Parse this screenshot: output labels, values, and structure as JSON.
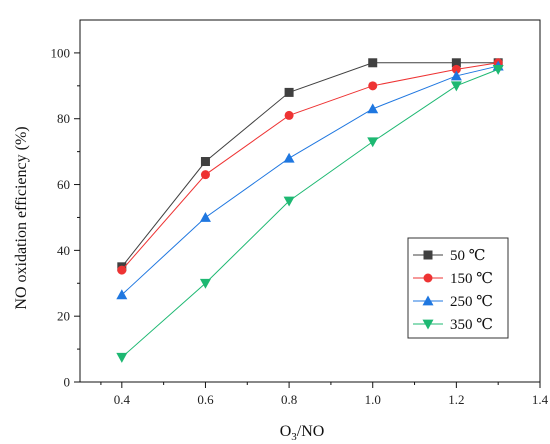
{
  "chart_data": {
    "type": "line",
    "xlabel": "O3/NO",
    "xlabel_main": "O",
    "xlabel_sub": "3",
    "xlabel_tail": "/NO",
    "ylabel": "NO oxidation efficiency (%)",
    "xlim": [
      0.3,
      1.4
    ],
    "ylim": [
      0,
      110
    ],
    "xticks": [
      0.4,
      0.6,
      0.8,
      1.0,
      1.2,
      1.4
    ],
    "xtick_labels": [
      "0.4",
      "0.6",
      "0.8",
      "1.0",
      "1.2",
      "1.4"
    ],
    "yticks": [
      0,
      20,
      40,
      60,
      80,
      100
    ],
    "ytick_labels": [
      "0",
      "20",
      "40",
      "60",
      "80",
      "100"
    ],
    "grid": false,
    "legend_position": "center-right",
    "x": [
      0.4,
      0.6,
      0.8,
      1.0,
      1.2,
      1.3
    ],
    "series": [
      {
        "name": "50 ℃",
        "color": "#404040",
        "marker": "square",
        "values": [
          35,
          67,
          88,
          97,
          97,
          97
        ]
      },
      {
        "name": "150 ℃",
        "color": "#ee3333",
        "marker": "circle",
        "values": [
          34,
          63,
          81,
          90,
          95,
          97
        ]
      },
      {
        "name": "250 ℃",
        "color": "#1f77e0",
        "marker": "triangle-up",
        "values": [
          26.5,
          50,
          68,
          83,
          93,
          96
        ]
      },
      {
        "name": "350 ℃",
        "color": "#1db872",
        "marker": "triangle-down",
        "values": [
          7.5,
          30,
          55,
          73,
          90,
          95
        ]
      }
    ]
  }
}
